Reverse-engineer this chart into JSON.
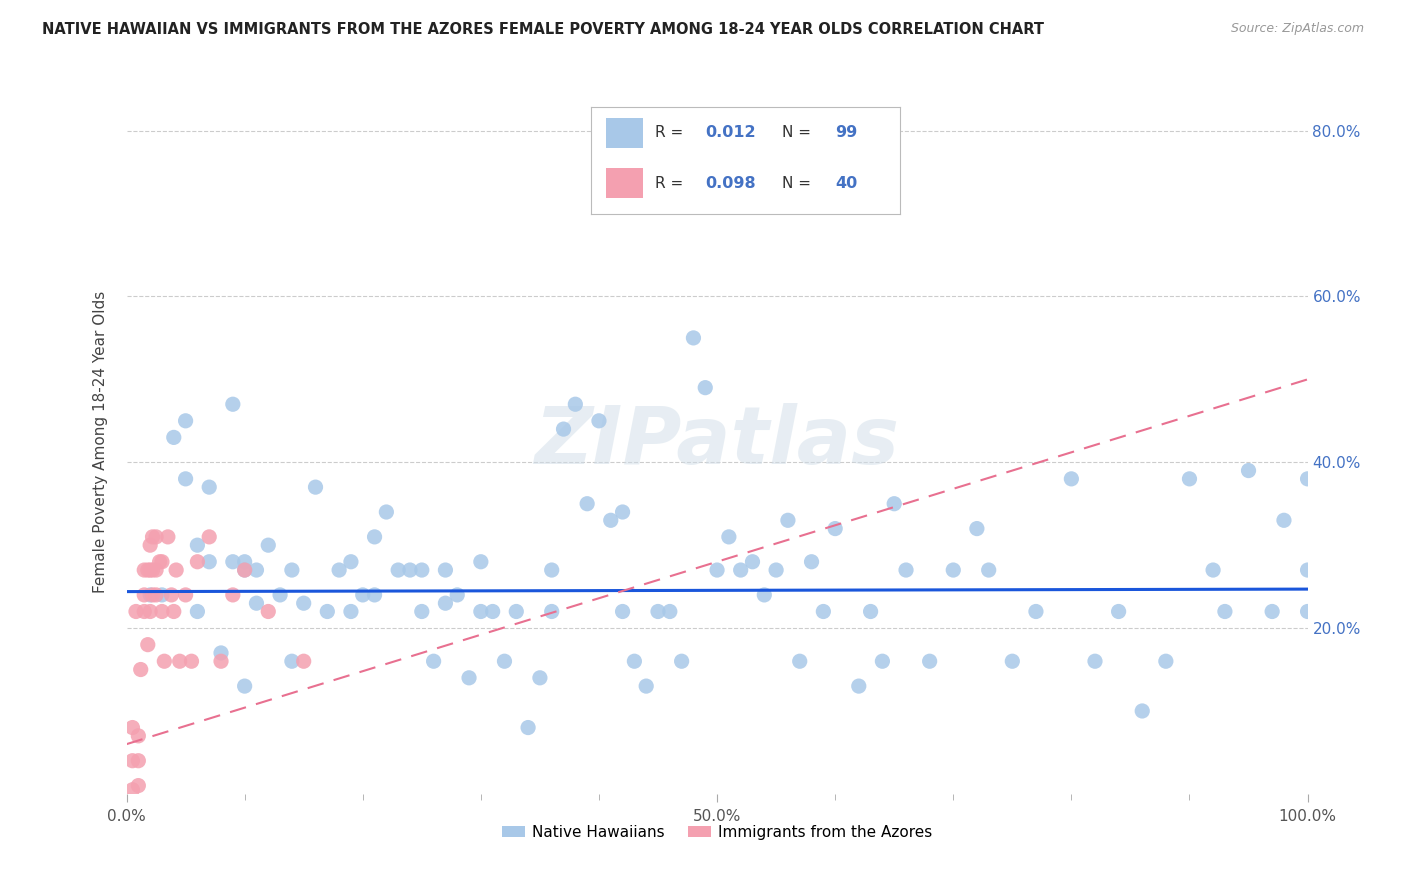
{
  "title": "NATIVE HAWAIIAN VS IMMIGRANTS FROM THE AZORES FEMALE POVERTY AMONG 18-24 YEAR OLDS CORRELATION CHART",
  "source": "Source: ZipAtlas.com",
  "ylabel": "Female Poverty Among 18-24 Year Olds",
  "xlim": [
    0.0,
    1.0
  ],
  "ylim": [
    0.0,
    0.85
  ],
  "y_ticks": [
    0.2,
    0.4,
    0.6,
    0.8
  ],
  "y_tick_labels": [
    "20.0%",
    "40.0%",
    "60.0%",
    "80.0%"
  ],
  "legend_label1": "Native Hawaiians",
  "legend_label2": "Immigrants from the Azores",
  "r1": "0.012",
  "n1": "99",
  "r2": "0.098",
  "n2": "40",
  "color_blue": "#a8c8e8",
  "color_pink": "#f4a0b0",
  "line_color_blue": "#1a56db",
  "line_color_pink": "#e87090",
  "blue_x": [
    0.02,
    0.03,
    0.04,
    0.05,
    0.05,
    0.06,
    0.06,
    0.07,
    0.07,
    0.08,
    0.09,
    0.09,
    0.1,
    0.1,
    0.11,
    0.11,
    0.12,
    0.13,
    0.14,
    0.14,
    0.15,
    0.16,
    0.17,
    0.18,
    0.19,
    0.19,
    0.2,
    0.21,
    0.21,
    0.22,
    0.23,
    0.24,
    0.25,
    0.25,
    0.26,
    0.27,
    0.27,
    0.28,
    0.29,
    0.3,
    0.3,
    0.31,
    0.32,
    0.33,
    0.34,
    0.35,
    0.36,
    0.36,
    0.37,
    0.38,
    0.39,
    0.4,
    0.41,
    0.42,
    0.42,
    0.43,
    0.44,
    0.45,
    0.46,
    0.47,
    0.48,
    0.49,
    0.5,
    0.51,
    0.52,
    0.53,
    0.54,
    0.55,
    0.56,
    0.57,
    0.58,
    0.59,
    0.6,
    0.62,
    0.63,
    0.64,
    0.65,
    0.66,
    0.68,
    0.7,
    0.72,
    0.73,
    0.75,
    0.77,
    0.8,
    0.82,
    0.84,
    0.86,
    0.88,
    0.9,
    0.92,
    0.93,
    0.95,
    0.97,
    0.98,
    1.0,
    1.0,
    1.0,
    0.1
  ],
  "blue_y": [
    0.24,
    0.24,
    0.43,
    0.45,
    0.38,
    0.22,
    0.3,
    0.37,
    0.28,
    0.17,
    0.47,
    0.28,
    0.28,
    0.27,
    0.27,
    0.23,
    0.3,
    0.24,
    0.27,
    0.16,
    0.23,
    0.37,
    0.22,
    0.27,
    0.28,
    0.22,
    0.24,
    0.31,
    0.24,
    0.34,
    0.27,
    0.27,
    0.27,
    0.22,
    0.16,
    0.27,
    0.23,
    0.24,
    0.14,
    0.28,
    0.22,
    0.22,
    0.16,
    0.22,
    0.08,
    0.14,
    0.27,
    0.22,
    0.44,
    0.47,
    0.35,
    0.45,
    0.33,
    0.34,
    0.22,
    0.16,
    0.13,
    0.22,
    0.22,
    0.16,
    0.55,
    0.49,
    0.27,
    0.31,
    0.27,
    0.28,
    0.24,
    0.27,
    0.33,
    0.16,
    0.28,
    0.22,
    0.32,
    0.13,
    0.22,
    0.16,
    0.35,
    0.27,
    0.16,
    0.27,
    0.32,
    0.27,
    0.16,
    0.22,
    0.38,
    0.16,
    0.22,
    0.1,
    0.16,
    0.38,
    0.27,
    0.22,
    0.39,
    0.22,
    0.33,
    0.27,
    0.22,
    0.38,
    0.13
  ],
  "pink_x": [
    0.005,
    0.005,
    0.005,
    0.008,
    0.01,
    0.01,
    0.01,
    0.012,
    0.015,
    0.015,
    0.015,
    0.018,
    0.018,
    0.02,
    0.02,
    0.02,
    0.022,
    0.022,
    0.022,
    0.025,
    0.025,
    0.025,
    0.028,
    0.03,
    0.03,
    0.032,
    0.035,
    0.038,
    0.04,
    0.042,
    0.045,
    0.05,
    0.055,
    0.06,
    0.07,
    0.08,
    0.09,
    0.1,
    0.12,
    0.15
  ],
  "pink_y": [
    0.005,
    0.04,
    0.08,
    0.22,
    0.01,
    0.04,
    0.07,
    0.15,
    0.22,
    0.24,
    0.27,
    0.18,
    0.27,
    0.22,
    0.27,
    0.3,
    0.24,
    0.27,
    0.31,
    0.24,
    0.27,
    0.31,
    0.28,
    0.22,
    0.28,
    0.16,
    0.31,
    0.24,
    0.22,
    0.27,
    0.16,
    0.24,
    0.16,
    0.28,
    0.31,
    0.16,
    0.24,
    0.27,
    0.22,
    0.16
  ],
  "blue_trend_x": [
    0.0,
    1.0
  ],
  "blue_trend_y": [
    0.244,
    0.247
  ],
  "pink_trend_x": [
    0.0,
    1.0
  ],
  "pink_trend_y": [
    0.06,
    0.5
  ]
}
